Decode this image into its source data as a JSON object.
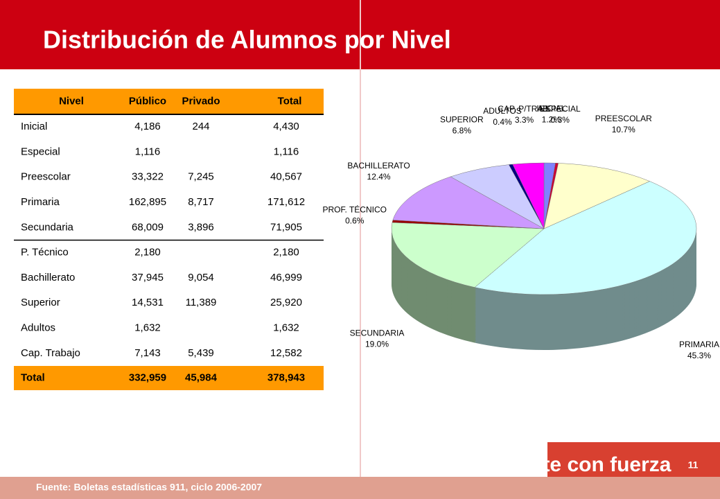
{
  "header": {
    "title": "Distribución de Alumnos por Nivel"
  },
  "table": {
    "header": [
      "Nivel",
      "Público",
      "Privado",
      "Total"
    ],
    "rows": [
      [
        "Inicial",
        "4,186",
        "244",
        "4,430"
      ],
      [
        "Especial",
        "1,116",
        null,
        "1,116"
      ],
      [
        "Preescolar",
        "33,322",
        "7,245",
        "40,567"
      ],
      [
        "Primaria",
        "162,895",
        "8,717",
        "171,612"
      ],
      [
        "Secundaria",
        "68,009",
        "3,896",
        "71,905"
      ],
      [
        "P. Técnico",
        "2,180",
        null,
        "2,180"
      ],
      [
        "Bachillerato",
        "37,945",
        "9,054",
        "46,999"
      ],
      [
        "Superior",
        "14,531",
        "11,389",
        "25,920"
      ],
      [
        "Adultos",
        "1,632",
        null,
        "1,632"
      ],
      [
        "Cap. Trabajo",
        "7,143",
        "5,439",
        "12,582"
      ]
    ],
    "total": [
      "Total",
      "332,959",
      "45,984",
      "378,943"
    ]
  },
  "chart_data": {
    "type": "pie",
    "categories": [
      "INICIAL",
      "ESPECIAL",
      "PREESCOLAR",
      "PRIMARIA",
      "SECUNDARIA",
      "PROF. TÉCNICO",
      "BACHILLERATO",
      "SUPERIOR",
      "ADULTOS",
      "CAP. P/TRAB."
    ],
    "values": [
      1.2,
      0.3,
      10.7,
      45.3,
      19.0,
      0.6,
      12.4,
      6.8,
      0.4,
      3.3
    ],
    "value_labels": [
      "1.2%",
      "0.3%",
      "10.7%",
      "45.3%",
      "19.0%",
      "0.6%",
      "12.4%",
      "6.8%",
      "0.4%",
      "3.3%"
    ],
    "colors": [
      "#8080ff",
      "#cc0033",
      "#ffffcc",
      "#ccffff",
      "#ccffcc",
      "#990000",
      "#cc99ff",
      "#ccccff",
      "#000080",
      "#ff00ff"
    ]
  },
  "footer": {
    "slogan": "Veracruz late con fuerza",
    "page": "11",
    "source": "Fuente: Boletas estadísticas 911, ciclo 2006-2007"
  }
}
